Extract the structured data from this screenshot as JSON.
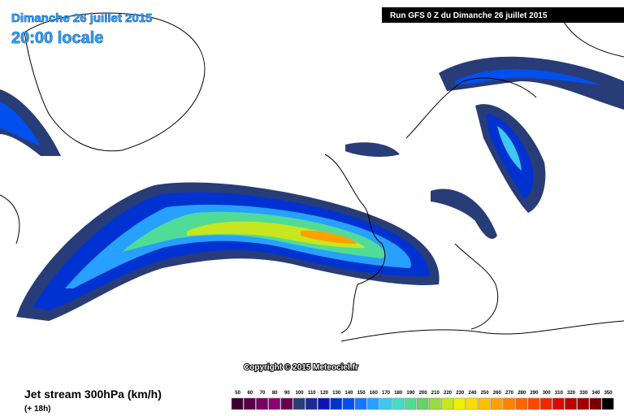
{
  "header": {
    "date": "Dimanche 26 juillet 2015",
    "time": "20:00 locale",
    "run": "Run GFS 0 Z du Dimanche 26 juillet 2015"
  },
  "copyright": "Copyright © 2015 Meteociel.fr",
  "footer": {
    "title": "Jet stream 300hPa (km/h)",
    "lead": "(+ 18h)"
  },
  "scale": {
    "values": [
      50,
      60,
      70,
      80,
      90,
      100,
      110,
      120,
      130,
      140,
      150,
      160,
      170,
      180,
      190,
      200,
      210,
      220,
      230,
      240,
      250,
      260,
      270,
      280,
      290,
      300,
      310,
      320,
      330,
      340,
      350
    ],
    "colors": [
      "#3c0030",
      "#5a0046",
      "#780060",
      "#8c0078",
      "#6a0050",
      "#283c78",
      "#1e2896",
      "#0a14b4",
      "#0032d2",
      "#0050f0",
      "#1478ff",
      "#28a0ff",
      "#3cc8f0",
      "#46dcc8",
      "#50dc96",
      "#64d264",
      "#96dc3c",
      "#c8e61e",
      "#f0f000",
      "#ffdc00",
      "#ffbe00",
      "#ffa000",
      "#ff8200",
      "#ff6400",
      "#ff4600",
      "#f02800",
      "#dc0a00",
      "#be0000",
      "#a00000",
      "#780000",
      "#000000"
    ]
  }
}
